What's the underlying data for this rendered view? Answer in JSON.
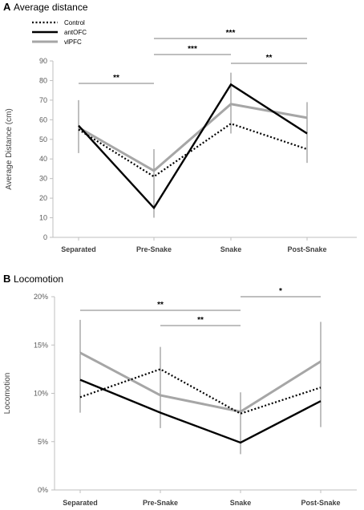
{
  "chart_data": [
    {
      "panel": "A",
      "title": "Average distance",
      "type": "line",
      "ylabel": "Average Distance (cm)",
      "categories": [
        "Separated",
        "Pre-Snake",
        "Snake",
        "Post-Snake"
      ],
      "ylim": [
        0,
        90
      ],
      "yticks": [
        "0",
        "10",
        "20",
        "30",
        "40",
        "50",
        "60",
        "70",
        "80",
        "90"
      ],
      "legend_position": "top-left",
      "series": [
        {
          "name": "Control",
          "values": [
            55,
            31,
            58,
            45
          ],
          "style": "dotted",
          "color": "#000000"
        },
        {
          "name": "antOFC",
          "values": [
            57,
            15,
            78,
            53
          ],
          "style": "solid",
          "color": "#000000"
        },
        {
          "name": "vlPFC",
          "values": [
            56,
            34,
            68,
            61
          ],
          "style": "solid",
          "color": "#a6a6a6"
        }
      ],
      "error_bars": [
        {
          "category": "Separated",
          "low": 43,
          "high": 70
        },
        {
          "category": "Pre-Snake",
          "low": 10,
          "high": 45
        },
        {
          "category": "Snake",
          "low": 53,
          "high": 84
        },
        {
          "category": "Post-Snake",
          "low": 38,
          "high": 69
        }
      ],
      "significance": [
        {
          "from": "Separated",
          "to": "Pre-Snake",
          "label": "**"
        },
        {
          "from": "Pre-Snake",
          "to": "Post-Snake",
          "label": "***"
        },
        {
          "from": "Pre-Snake",
          "to": "Snake",
          "label": "***"
        },
        {
          "from": "Snake",
          "to": "Post-Snake",
          "label": "**"
        }
      ]
    },
    {
      "panel": "B",
      "title": "Locomotion",
      "type": "line",
      "ylabel": "Locomotion",
      "categories": [
        "Separated",
        "Pre-Snake",
        "Snake",
        "Post-Snake"
      ],
      "ylim": [
        0,
        20
      ],
      "yticks": [
        "0%",
        "5%",
        "10%",
        "15%",
        "20%"
      ],
      "series": [
        {
          "name": "Control",
          "values": [
            9.6,
            12.5,
            7.9,
            10.6
          ],
          "style": "dotted",
          "color": "#000000"
        },
        {
          "name": "antOFC",
          "values": [
            11.4,
            8.0,
            4.9,
            9.2
          ],
          "style": "solid",
          "color": "#000000"
        },
        {
          "name": "vlPFC",
          "values": [
            14.2,
            9.8,
            8.1,
            13.3
          ],
          "style": "solid",
          "color": "#a6a6a6"
        }
      ],
      "error_bars": [
        {
          "category": "Separated",
          "low": 8.0,
          "high": 17.6
        },
        {
          "category": "Pre-Snake",
          "low": 6.4,
          "high": 14.8
        },
        {
          "category": "Snake",
          "low": 3.7,
          "high": 10.1
        },
        {
          "category": "Post-Snake",
          "low": 6.5,
          "high": 17.4
        }
      ],
      "significance": [
        {
          "from": "Separated",
          "to": "Snake",
          "label": "**"
        },
        {
          "from": "Pre-Snake",
          "to": "Snake",
          "label": "**"
        },
        {
          "from": "Snake",
          "to": "Post-Snake",
          "label": "*"
        }
      ]
    }
  ]
}
